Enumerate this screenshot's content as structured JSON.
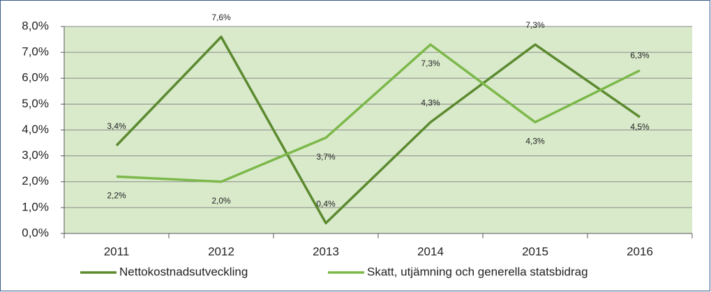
{
  "chart_data": {
    "type": "line",
    "categories": [
      "2011",
      "2012",
      "2013",
      "2014",
      "2015",
      "2016"
    ],
    "series": [
      {
        "name": "Nettokostnadsutveckling",
        "color": "#5b8a2f",
        "values": [
          3.4,
          7.6,
          0.4,
          4.3,
          7.3,
          4.5
        ],
        "value_labels": [
          "3,4%",
          "7,6%",
          "0,4%",
          "4,3%",
          "7,3%",
          "4,5%"
        ]
      },
      {
        "name": "Skatt, utjämning och generella statsbidrag",
        "color": "#7cb84a",
        "values": [
          2.2,
          2.0,
          3.7,
          7.3,
          4.3,
          6.3
        ],
        "value_labels": [
          "2,2%",
          "2,0%",
          "3,7%",
          "7,3%",
          "4,3%",
          "6,3%"
        ]
      }
    ],
    "ylim": [
      0,
      8
    ],
    "yticks": [
      {
        "value": 0,
        "label": "0,0%"
      },
      {
        "value": 1,
        "label": "1,0%"
      },
      {
        "value": 2,
        "label": "2,0%"
      },
      {
        "value": 3,
        "label": "3,0%"
      },
      {
        "value": 4,
        "label": "4,0%"
      },
      {
        "value": 5,
        "label": "5,0%"
      },
      {
        "value": 6,
        "label": "6,0%"
      },
      {
        "value": 7,
        "label": "7,0%"
      },
      {
        "value": 8,
        "label": "8,0%"
      }
    ],
    "grid": true,
    "legend": "bottom"
  }
}
